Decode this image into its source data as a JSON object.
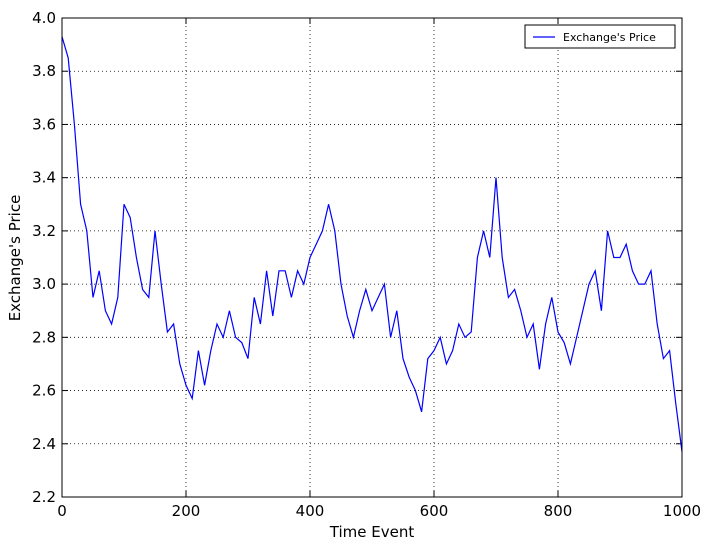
{
  "chart_data": {
    "type": "line",
    "xlabel": "Time Event",
    "ylabel": "Exchange's Price",
    "x": [
      0,
      10,
      20,
      30,
      40,
      50,
      60,
      70,
      80,
      90,
      100,
      110,
      120,
      130,
      140,
      150,
      160,
      170,
      180,
      190,
      200,
      210,
      220,
      230,
      240,
      250,
      260,
      270,
      280,
      290,
      300,
      310,
      320,
      330,
      340,
      350,
      360,
      370,
      380,
      390,
      400,
      410,
      420,
      430,
      440,
      450,
      460,
      470,
      480,
      490,
      500,
      510,
      520,
      530,
      540,
      550,
      560,
      570,
      580,
      590,
      600,
      610,
      620,
      630,
      640,
      650,
      660,
      670,
      680,
      690,
      700,
      710,
      720,
      730,
      740,
      750,
      760,
      770,
      780,
      790,
      800,
      810,
      820,
      830,
      840,
      850,
      860,
      870,
      880,
      890,
      900,
      910,
      920,
      930,
      940,
      950,
      960,
      970,
      980,
      990,
      1000
    ],
    "series": [
      {
        "name": "Exchange's Price",
        "color": "#0000ff",
        "values": [
          3.93,
          3.85,
          3.6,
          3.3,
          3.2,
          2.95,
          3.05,
          2.9,
          2.85,
          2.95,
          3.3,
          3.25,
          3.1,
          2.98,
          2.95,
          3.2,
          3.0,
          2.82,
          2.85,
          2.7,
          2.62,
          2.57,
          2.75,
          2.62,
          2.75,
          2.85,
          2.8,
          2.9,
          2.8,
          2.78,
          2.72,
          2.95,
          2.85,
          3.05,
          2.88,
          3.05,
          3.05,
          2.95,
          3.05,
          3.0,
          3.1,
          3.15,
          3.2,
          3.3,
          3.2,
          3.0,
          2.88,
          2.8,
          2.9,
          2.98,
          2.9,
          2.95,
          3.0,
          2.8,
          2.9,
          2.72,
          2.65,
          2.6,
          2.52,
          2.72,
          2.75,
          2.8,
          2.7,
          2.75,
          2.85,
          2.8,
          2.82,
          3.1,
          3.2,
          3.1,
          3.4,
          3.1,
          2.95,
          2.98,
          2.9,
          2.8,
          2.85,
          2.68,
          2.85,
          2.95,
          2.82,
          2.78,
          2.7,
          2.8,
          2.9,
          3.0,
          3.05,
          2.9,
          3.2,
          3.1,
          3.1,
          3.15,
          3.05,
          3.0,
          3.0,
          3.05,
          2.85,
          2.72,
          2.75,
          2.55,
          2.37
        ]
      }
    ],
    "xlim": [
      0,
      1000
    ],
    "xticks": [
      0,
      200,
      400,
      600,
      800,
      1000
    ],
    "ylim": [
      2.2,
      4.0
    ],
    "yticks": [
      {
        "value": 2.2,
        "label": "2.2"
      },
      {
        "value": 2.4,
        "label": "2.4"
      },
      {
        "value": 2.6,
        "label": "2.6"
      },
      {
        "value": 2.8,
        "label": "2.8"
      },
      {
        "value": 3.0,
        "label": "3.0"
      },
      {
        "value": 3.2,
        "label": "3.2"
      },
      {
        "value": 3.4,
        "label": "3.4"
      },
      {
        "value": 3.6,
        "label": "3.6"
      },
      {
        "value": 3.8,
        "label": "3.8"
      },
      {
        "value": 4.0,
        "label": "4.0"
      }
    ],
    "grid": true,
    "legend": "upper-right"
  }
}
